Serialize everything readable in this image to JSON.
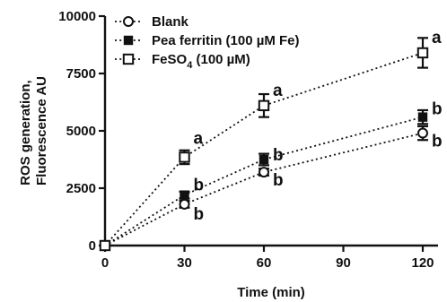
{
  "chart_data": {
    "type": "line",
    "xlabel": "Time (min)",
    "ylabel_lines": [
      "ROS generation,",
      "Fluorescence AU"
    ],
    "x": [
      0,
      30,
      60,
      120
    ],
    "xticks": [
      "0",
      "30",
      "60",
      "90",
      "120"
    ],
    "xtick_values": [
      0,
      30,
      60,
      90,
      120
    ],
    "yticks": [
      "0",
      "2500",
      "5000",
      "7500",
      "10000"
    ],
    "ytick_values": [
      0,
      2500,
      5000,
      7500,
      10000
    ],
    "xlim": [
      0,
      130
    ],
    "ylim": [
      0,
      10000
    ],
    "legend_placement": "top-left",
    "series": [
      {
        "name": "Blank",
        "marker": "open-circle",
        "values": [
          0,
          1800,
          3200,
          4900
        ],
        "errors": [
          0,
          150,
          150,
          300
        ],
        "sig": [
          "",
          "b",
          "b",
          "b"
        ]
      },
      {
        "name": "Pea ferritin (100 µM Fe)",
        "marker": "filled-square",
        "values": [
          0,
          2200,
          3750,
          5600
        ],
        "errors": [
          0,
          150,
          250,
          300
        ],
        "sig": [
          "",
          "b",
          "b",
          "b"
        ]
      },
      {
        "name": "FeSO4 (100 µM)",
        "name_parts": {
          "pre": "FeSO",
          "sub": "4",
          "post": " (100 µM)"
        },
        "marker": "open-square",
        "values": [
          0,
          3850,
          6100,
          8400
        ],
        "errors": [
          0,
          300,
          500,
          650
        ],
        "sig": [
          "",
          "a",
          "a",
          "a"
        ]
      }
    ]
  }
}
